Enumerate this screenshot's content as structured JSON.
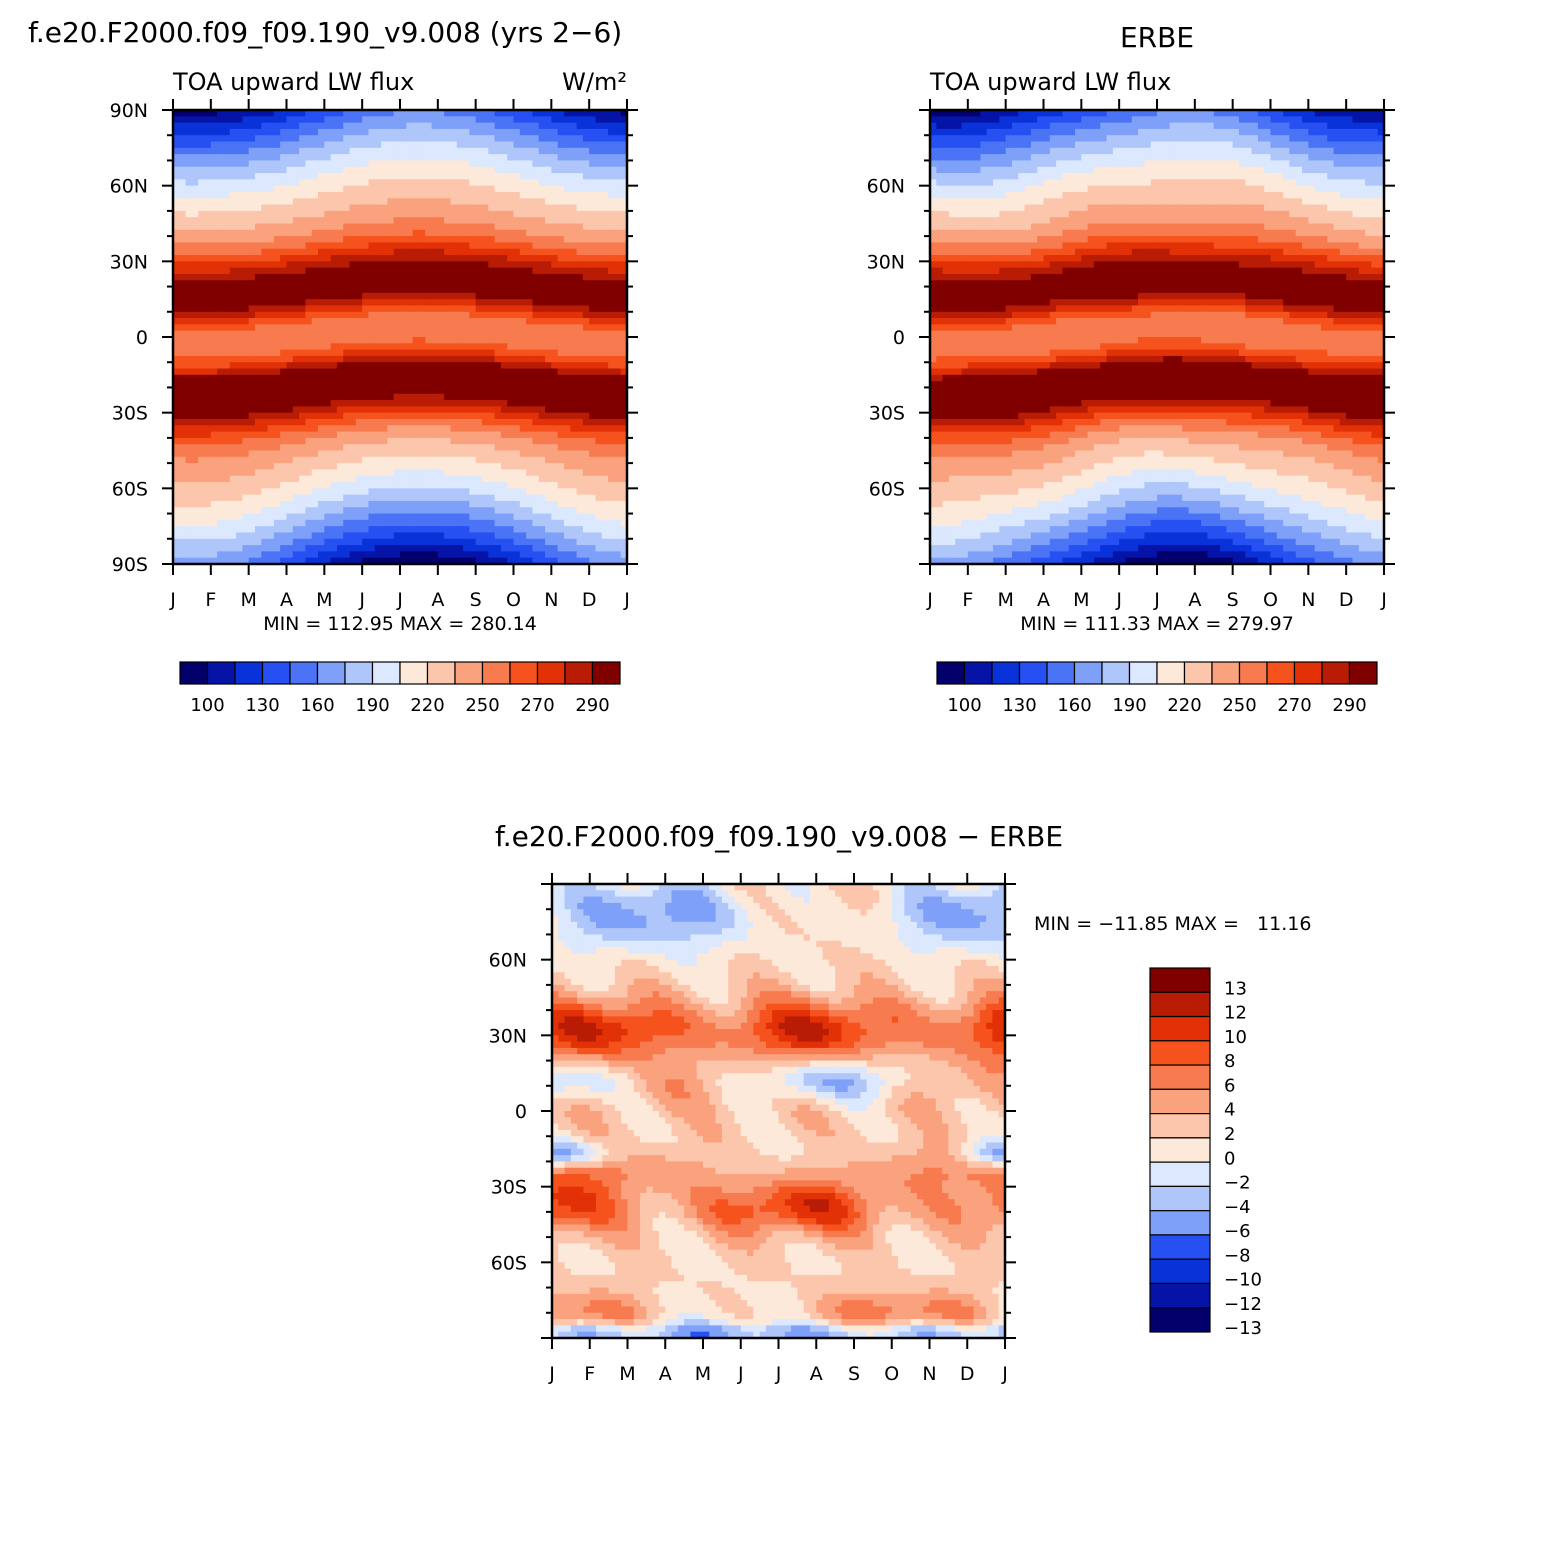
{
  "chart_data": [
    {
      "type": "heatmap",
      "panel": "model",
      "title": "f.e20.F2000.f09_f09.190_v9.008 (yrs 2−6)",
      "subtitle_left": "TOA upward LW flux",
      "subtitle_right": "W/m²",
      "x_ticks": [
        "J",
        "F",
        "M",
        "A",
        "M",
        "J",
        "J",
        "A",
        "S",
        "O",
        "N",
        "D",
        "J"
      ],
      "y_ticks": [
        "90N",
        "60N",
        "30N",
        "0",
        "30S",
        "60S",
        "90S"
      ],
      "y_values": [
        90,
        60,
        30,
        0,
        -30,
        -60,
        -90
      ],
      "xlim": [
        0,
        12
      ],
      "ylim": [
        -90,
        90
      ],
      "stats": "MIN = 112.95  MAX = 280.14",
      "min": 112.95,
      "max": 280.14,
      "levels": [
        100,
        110,
        120,
        130,
        140,
        150,
        160,
        170,
        180,
        190,
        200,
        210,
        220,
        230,
        240,
        250,
        260,
        270,
        280,
        290
      ],
      "colorbar_labels": [
        "100",
        "130",
        "160",
        "190",
        "220",
        "250",
        "270",
        "290"
      ]
    },
    {
      "type": "heatmap",
      "panel": "obs",
      "title": "ERBE",
      "subtitle_left": "TOA upward LW flux",
      "x_ticks": [
        "J",
        "F",
        "M",
        "A",
        "M",
        "J",
        "J",
        "A",
        "S",
        "O",
        "N",
        "D",
        "J"
      ],
      "y_ticks": [
        "60N",
        "30N",
        "0",
        "30S",
        "60S"
      ],
      "y_values": [
        60,
        30,
        0,
        -30,
        -60
      ],
      "xlim": [
        0,
        12
      ],
      "ylim": [
        -90,
        90
      ],
      "stats": "MIN = 111.33  MAX = 279.97",
      "min": 111.33,
      "max": 279.97,
      "levels": [
        100,
        110,
        120,
        130,
        140,
        150,
        160,
        170,
        180,
        190,
        200,
        210,
        220,
        230,
        240,
        250,
        260,
        270,
        280,
        290
      ],
      "colorbar_labels": [
        "100",
        "130",
        "160",
        "190",
        "220",
        "250",
        "270",
        "290"
      ]
    },
    {
      "type": "heatmap",
      "panel": "diff",
      "title": "f.e20.F2000.f09_f09.190_v9.008 − ERBE",
      "x_ticks": [
        "J",
        "F",
        "M",
        "A",
        "M",
        "J",
        "J",
        "A",
        "S",
        "O",
        "N",
        "D",
        "J"
      ],
      "y_ticks": [
        "60N",
        "30N",
        "0",
        "30S",
        "60S"
      ],
      "y_values": [
        60,
        30,
        0,
        -30,
        -60
      ],
      "xlim": [
        0,
        12
      ],
      "ylim": [
        -90,
        90
      ],
      "stats": "MIN = −11.85 MAX =   11.16",
      "min": -11.85,
      "max": 11.16,
      "levels": [
        -13,
        -12,
        -10,
        -8,
        -6,
        -4,
        -2,
        0,
        2,
        4,
        6,
        8,
        10,
        12,
        13
      ],
      "colorbar_labels": [
        "13",
        "12",
        "10",
        "8",
        "6",
        "4",
        "2",
        "0",
        "−2",
        "−4",
        "−6",
        "−8",
        "−10",
        "−12",
        "−13"
      ]
    }
  ],
  "colors": {
    "flux": [
      "#03006b",
      "#0514a6",
      "#0a32d9",
      "#2650f2",
      "#4b73f5",
      "#7ea0f8",
      "#afc6fb",
      "#dbe8fd",
      "#fde9d9",
      "#fcc6ac",
      "#faa27e",
      "#f77b4f",
      "#f5521d",
      "#e23106",
      "#b91c04",
      "#800000"
    ],
    "diff": [
      "#03006b",
      "#0514a6",
      "#0a32d9",
      "#2650f2",
      "#7ea0f8",
      "#afc6fb",
      "#dbe8fd",
      "#fde9d9",
      "#fcc6ac",
      "#faa27e",
      "#f77b4f",
      "#f5521d",
      "#e23106",
      "#b91c04",
      "#800000"
    ]
  }
}
